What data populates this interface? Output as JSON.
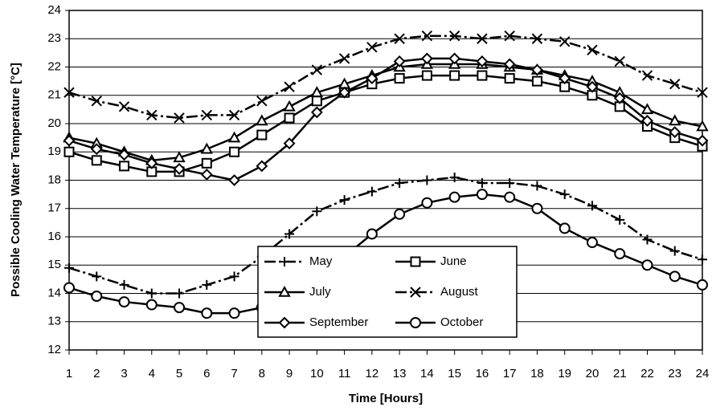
{
  "chart_data": {
    "type": "line",
    "x_label": "Time  [Hours]",
    "y_label": "Possible Cooling Water Temperature [°C]",
    "x": [
      1,
      2,
      3,
      4,
      5,
      6,
      7,
      8,
      9,
      10,
      11,
      12,
      13,
      14,
      15,
      16,
      17,
      18,
      19,
      20,
      21,
      22,
      23,
      24
    ],
    "xlim": [
      1,
      24
    ],
    "xticks": [
      1,
      2,
      3,
      4,
      5,
      6,
      7,
      8,
      9,
      10,
      11,
      12,
      13,
      14,
      15,
      16,
      17,
      18,
      19,
      20,
      21,
      22,
      23,
      24
    ],
    "ylim": [
      12,
      24
    ],
    "yticks": [
      12,
      13,
      14,
      15,
      16,
      17,
      18,
      19,
      20,
      21,
      22,
      23,
      24
    ],
    "grid": true,
    "legend": "lower center",
    "series": [
      {
        "name": "May",
        "color": "#000000",
        "marker": "plus",
        "dash": "dashdot",
        "values": [
          14.9,
          14.6,
          14.3,
          14.0,
          14.0,
          14.3,
          14.6,
          15.3,
          16.1,
          16.9,
          17.3,
          17.6,
          17.9,
          18.0,
          18.1,
          17.9,
          17.9,
          17.8,
          17.5,
          17.1,
          16.6,
          15.9,
          15.5,
          15.2
        ]
      },
      {
        "name": "June",
        "color": "#000000",
        "marker": "square",
        "dash": "solid",
        "values": [
          19.0,
          18.7,
          18.5,
          18.3,
          18.3,
          18.6,
          19.0,
          19.6,
          20.2,
          20.8,
          21.1,
          21.4,
          21.6,
          21.7,
          21.7,
          21.7,
          21.6,
          21.5,
          21.3,
          21.0,
          20.6,
          19.9,
          19.5,
          19.2
        ]
      },
      {
        "name": "July",
        "color": "#000000",
        "marker": "triangle",
        "dash": "solid",
        "values": [
          19.5,
          19.3,
          19.0,
          18.7,
          18.8,
          19.1,
          19.5,
          20.1,
          20.6,
          21.1,
          21.4,
          21.7,
          22.0,
          22.1,
          22.1,
          22.1,
          22.0,
          21.9,
          21.7,
          21.5,
          21.1,
          20.5,
          20.1,
          19.9
        ]
      },
      {
        "name": "August",
        "color": "#000000",
        "marker": "x",
        "dash": "dashdot",
        "values": [
          21.1,
          20.8,
          20.6,
          20.3,
          20.2,
          20.3,
          20.3,
          20.8,
          21.3,
          21.9,
          22.3,
          22.7,
          23.0,
          23.1,
          23.1,
          23.0,
          23.1,
          23.0,
          22.9,
          22.6,
          22.2,
          21.7,
          21.4,
          21.1
        ]
      },
      {
        "name": "September",
        "color": "#000000",
        "marker": "diamond",
        "dash": "solid",
        "values": [
          19.4,
          19.1,
          18.9,
          18.6,
          18.4,
          18.2,
          18.0,
          18.5,
          19.3,
          20.4,
          21.1,
          21.6,
          22.2,
          22.3,
          22.3,
          22.2,
          22.1,
          21.9,
          21.6,
          21.3,
          20.9,
          20.1,
          19.7,
          19.4
        ]
      },
      {
        "name": "October",
        "color": "#000000",
        "marker": "circle",
        "dash": "solid",
        "values": [
          14.2,
          13.9,
          13.7,
          13.6,
          13.5,
          13.3,
          13.3,
          13.5,
          14.0,
          14.7,
          15.3,
          16.1,
          16.8,
          17.2,
          17.4,
          17.5,
          17.4,
          17.0,
          16.3,
          15.8,
          15.4,
          15.0,
          14.6,
          14.3
        ]
      }
    ]
  }
}
